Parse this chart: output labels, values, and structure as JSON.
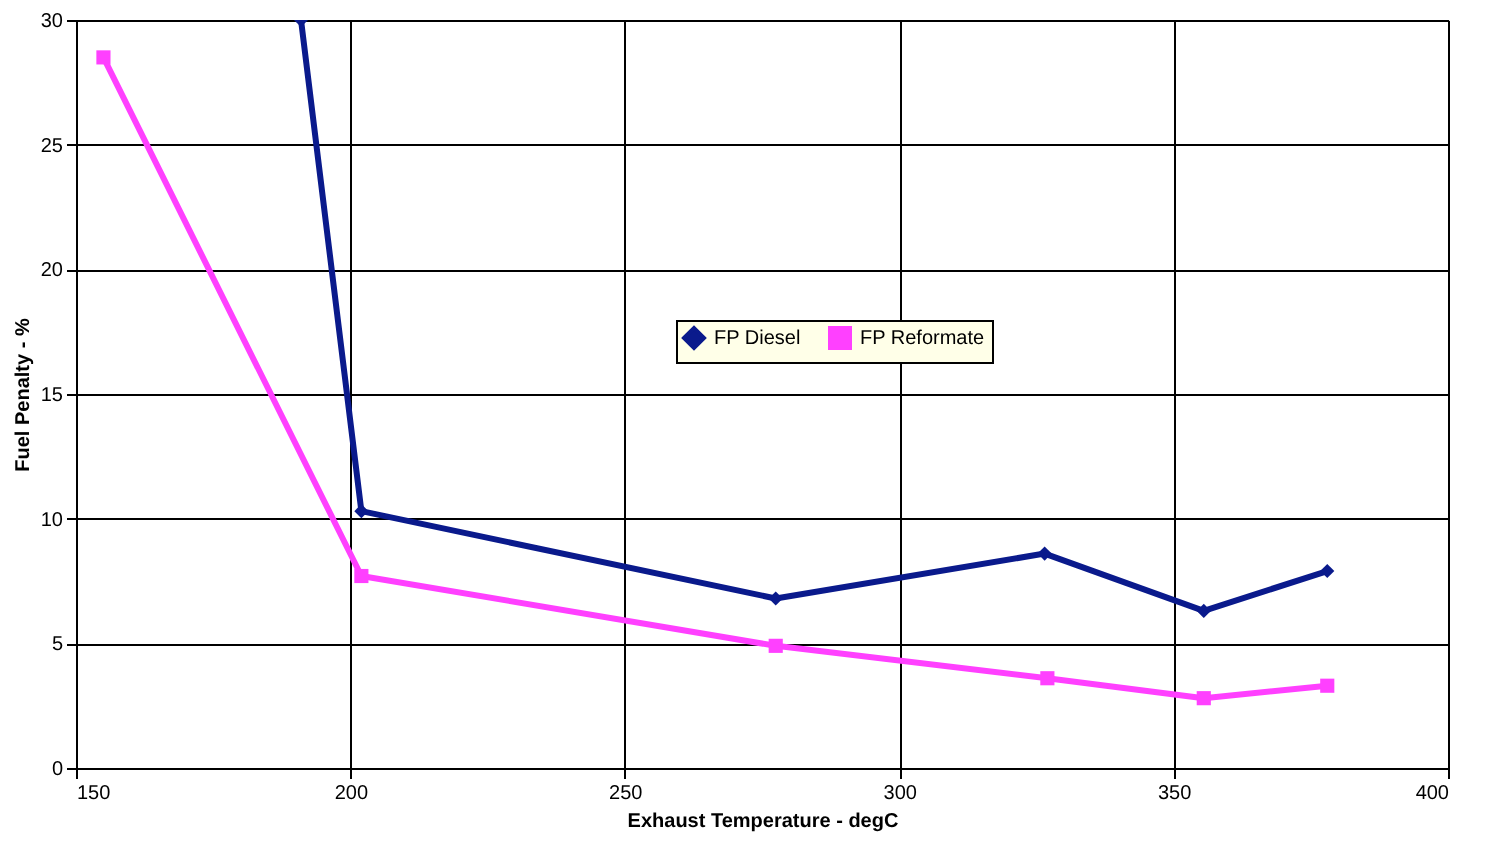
{
  "chart_data": {
    "type": "line",
    "xlabel": "Exhaust Temperature - degC",
    "ylabel": "Fuel Penalty - %",
    "xlim": [
      150,
      400
    ],
    "xticks": [
      150,
      200,
      250,
      300,
      350,
      400
    ],
    "ylim": [
      0,
      30
    ],
    "yticks": [
      0,
      5,
      10,
      15,
      20,
      25,
      30
    ],
    "grid": true,
    "legend": "center",
    "line_style": "solid",
    "series": [
      {
        "name": "FP Diesel",
        "color": "#0a1a8c",
        "marker": "diamond",
        "x": [
          191,
          202,
          277.5,
          326.5,
          355.5,
          378
        ],
        "values": [
          30,
          10.3,
          6.8,
          8.6,
          6.3,
          7.9
        ]
      },
      {
        "name": "FP Reformate",
        "color": "#ff40ff",
        "marker": "square",
        "x": [
          155,
          202,
          277.5,
          327,
          355.5,
          378
        ],
        "values": [
          28.5,
          7.7,
          4.9,
          3.6,
          2.8,
          3.3
        ]
      }
    ]
  }
}
